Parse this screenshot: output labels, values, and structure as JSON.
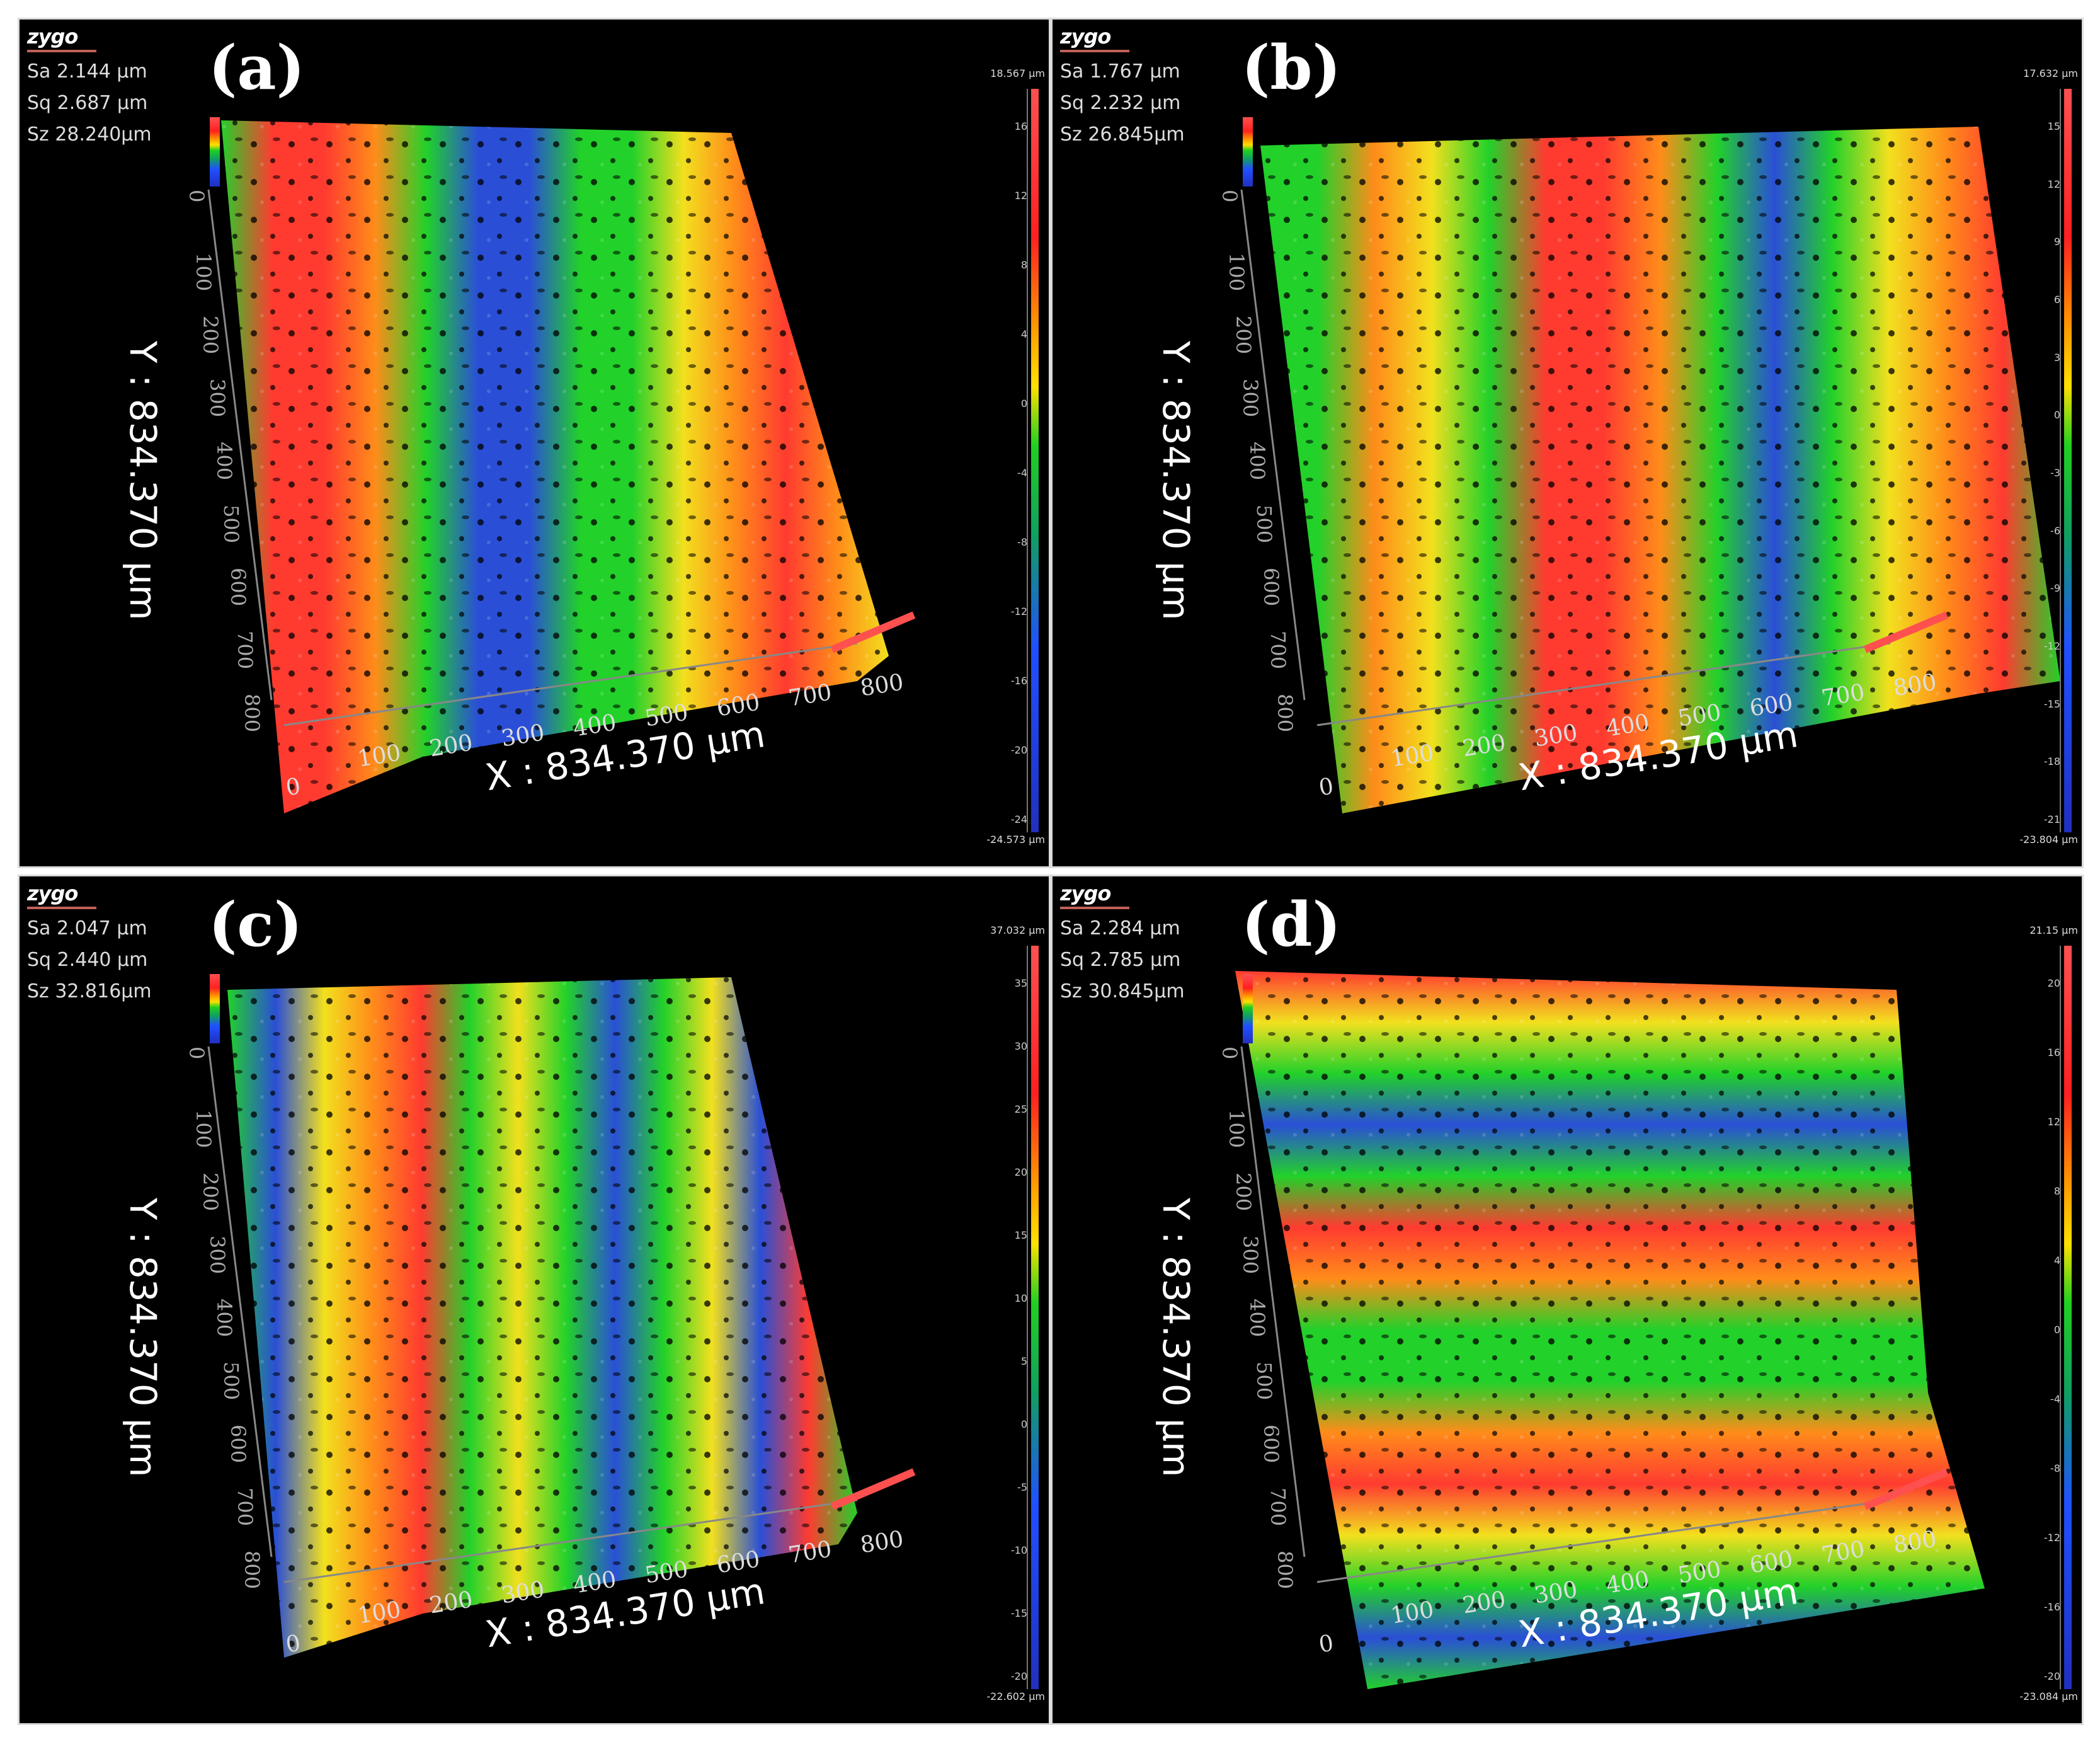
{
  "panels": [
    {
      "label": "(a)",
      "logo": "zygo",
      "stats": [
        "Sa 2.144  μm",
        "Sq 2.687  μm",
        "Sz 28.240μm"
      ],
      "x_axis": "X : 834.370 μm",
      "y_axis": "Y : 834.370 μm",
      "cbar_max": "18.567 μm",
      "cbar_min": "-24.573 μm",
      "cbar_ticks": [
        "16",
        "12",
        "8",
        "4",
        "0",
        "-4",
        "-8",
        "-12",
        "-16",
        "-20",
        "-24"
      ],
      "bands": "vertical-a"
    },
    {
      "label": "(b)",
      "logo": "zygo",
      "stats": [
        "Sa 1.767  μm",
        "Sq 2.232  μm",
        "Sz 26.845μm"
      ],
      "x_axis": "X : 834.370 μm",
      "y_axis": "Y : 834.370 μm",
      "cbar_max": "17.632 μm",
      "cbar_min": "-23.804 μm",
      "cbar_ticks": [
        "15",
        "12",
        "9",
        "6",
        "3",
        "0",
        "-3",
        "-6",
        "-9",
        "-12",
        "-15",
        "-18",
        "-21"
      ],
      "bands": "vertical-b"
    },
    {
      "label": "(c)",
      "logo": "zygo",
      "stats": [
        "Sa 2.047  μm",
        "Sq 2.440  μm",
        "Sz 32.816μm"
      ],
      "x_axis": "X : 834.370 μm",
      "y_axis": "Y : 834.370 μm",
      "cbar_max": "37.032 μm",
      "cbar_min": "-22.602 μm",
      "cbar_ticks": [
        "35",
        "30",
        "25",
        "20",
        "15",
        "10",
        "5",
        "0",
        "-5",
        "-10",
        "-15",
        "-20"
      ],
      "bands": "vertical-c"
    },
    {
      "label": "(d)",
      "logo": "zygo",
      "stats": [
        "Sa 2.284  μm",
        "Sq 2.785  μm",
        "Sz 30.845μm"
      ],
      "x_axis": "X : 834.370 μm",
      "y_axis": "Y : 834.370 μm",
      "cbar_max": "21.15 μm",
      "cbar_min": "-23.084 μm",
      "cbar_ticks": [
        "20",
        "16",
        "12",
        "8",
        "4",
        "0",
        "-4",
        "-8",
        "-12",
        "-16",
        "-20"
      ],
      "bands": "horizontal-d"
    }
  ],
  "x_ticks": [
    "0",
    "100",
    "200",
    "300",
    "400",
    "500",
    "600",
    "700",
    "800"
  ],
  "y_ticks": [
    "0",
    "100",
    "200",
    "300",
    "400",
    "500",
    "600",
    "700",
    "800"
  ],
  "colors": {
    "red": "#ff3b30",
    "orange": "#ff8c1a",
    "yellow": "#f2e01e",
    "green": "#22d12a",
    "blue": "#2a4fd6",
    "bg": "#000000"
  }
}
